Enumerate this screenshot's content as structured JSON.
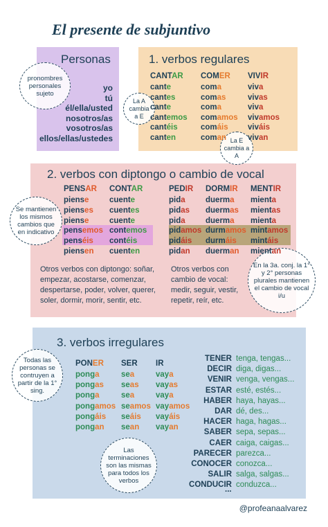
{
  "title": "El presente de subjuntivo",
  "personas": {
    "heading": "Personas",
    "note": "pronombres personales sujeto",
    "pronouns": [
      "yo",
      "tú",
      "él/ella/usted",
      "nosotros/as",
      "vosotros/as",
      "ellos/ellas/ustedes"
    ]
  },
  "regulares": {
    "heading": "1. verbos regulares",
    "note_a": "La A cambia a E",
    "note_e": "La E cambia a A",
    "verbs": [
      {
        "infinitive": [
          "CANT",
          "AR"
        ],
        "forms": [
          [
            "cant",
            "e"
          ],
          [
            "cant",
            "es"
          ],
          [
            "cant",
            "e"
          ],
          [
            "cant",
            "emos"
          ],
          [
            "cant",
            "éis"
          ],
          [
            "cant",
            "en"
          ]
        ]
      },
      {
        "infinitive": [
          "COM",
          "ER"
        ],
        "forms": [
          [
            "com",
            "a"
          ],
          [
            "com",
            "as"
          ],
          [
            "com",
            "a"
          ],
          [
            "com",
            "amos"
          ],
          [
            "com",
            "áis"
          ],
          [
            "com",
            "an"
          ]
        ]
      },
      {
        "infinitive": [
          "VIV",
          "IR"
        ],
        "forms": [
          [
            "viv",
            "a"
          ],
          [
            "viv",
            "as"
          ],
          [
            "viv",
            "a"
          ],
          [
            "viv",
            "amos"
          ],
          [
            "viv",
            "áis"
          ],
          [
            "viv",
            "an"
          ]
        ]
      }
    ]
  },
  "diptongo": {
    "heading": "2. verbos con diptongo o cambio de vocal",
    "note_left": "Se mantienen los mismos cambios que en indicativo",
    "note_right": "En la 3a. conj. la 1° y 2° personas plurales mantienen el cambio de vocal i/u",
    "verbs": [
      {
        "infinitive": [
          "PENS",
          "AR"
        ],
        "forms": [
          [
            "piens",
            "e"
          ],
          [
            "piens",
            "es"
          ],
          [
            "piens",
            "e"
          ],
          [
            "pens",
            "emos"
          ],
          [
            "pens",
            "éis"
          ],
          [
            "piens",
            "en"
          ]
        ]
      },
      {
        "infinitive": [
          "CONT",
          "AR"
        ],
        "forms": [
          [
            "cuent",
            "e"
          ],
          [
            "cuent",
            "es"
          ],
          [
            "cuent",
            "e"
          ],
          [
            "cont",
            "emos"
          ],
          [
            "cont",
            "éis"
          ],
          [
            "cuent",
            "en"
          ]
        ]
      },
      {
        "infinitive": [
          "PED",
          "IR"
        ],
        "forms": [
          [
            "pid",
            "a"
          ],
          [
            "pid",
            "as"
          ],
          [
            "pid",
            "a"
          ],
          [
            "pid",
            "amos"
          ],
          [
            "pid",
            "áis"
          ],
          [
            "pid",
            "an"
          ]
        ]
      },
      {
        "infinitive": [
          "DORM",
          "IR"
        ],
        "forms": [
          [
            "duerm",
            "a"
          ],
          [
            "duerm",
            "as"
          ],
          [
            "duerm",
            "a"
          ],
          [
            "durm",
            "amos"
          ],
          [
            "durm",
            "áis"
          ],
          [
            "duerm",
            "an"
          ]
        ]
      },
      {
        "infinitive": [
          "MENT",
          "IR"
        ],
        "forms": [
          [
            "mient",
            "a"
          ],
          [
            "mient",
            "as"
          ],
          [
            "mient",
            "a"
          ],
          [
            "mint",
            "amos"
          ],
          [
            "mint",
            "áis"
          ],
          [
            "mient",
            "an"
          ]
        ]
      }
    ],
    "others_left": "Otros verbos con diptongo: soñar, empezar, acostarse, comenzar, despertarse, poder, volver, querer, soler, dormir, morir, sentir, etc.",
    "others_right": "Otros verbos con cambio de vocal: medir, seguir, vestir, repetir, reír, etc."
  },
  "irregulares": {
    "heading": "3. verbos irregulares",
    "note_left": "Todas las personas se contruyen a partir de la 1° sing.",
    "note_bottom": "Las terminaciones son las mismas para todos los verbos",
    "verbs": [
      {
        "infinitive": [
          "PON",
          "ER"
        ],
        "forms": [
          [
            "pong",
            "a"
          ],
          [
            "pong",
            "as"
          ],
          [
            "pong",
            "a"
          ],
          [
            "pong",
            "amos"
          ],
          [
            "pong",
            "áis"
          ],
          [
            "pong",
            "an"
          ]
        ]
      },
      {
        "infinitive": [
          "SER",
          ""
        ],
        "forms": [
          [
            "se",
            "a"
          ],
          [
            "se",
            "as"
          ],
          [
            "se",
            "a"
          ],
          [
            "se",
            "amos"
          ],
          [
            "se",
            "áis"
          ],
          [
            "se",
            "an"
          ]
        ]
      },
      {
        "infinitive": [
          "IR",
          ""
        ],
        "forms": [
          [
            "vay",
            "a"
          ],
          [
            "vay",
            "as"
          ],
          [
            "vay",
            "a"
          ],
          [
            "vay",
            "amos"
          ],
          [
            "vay",
            "áis"
          ],
          [
            "vay",
            "an"
          ]
        ]
      }
    ],
    "list": [
      [
        "TENER",
        "tenga, tengas..."
      ],
      [
        "DECIR",
        "diga, digas..."
      ],
      [
        "VENIR",
        "venga, vengas..."
      ],
      [
        "ESTAR",
        "esté, estés..."
      ],
      [
        "HABER",
        "haya, hayas..."
      ],
      [
        "DAR",
        "dé, des..."
      ],
      [
        "HACER",
        "haga, hagas..."
      ],
      [
        "SABER",
        "sepa, sepas..."
      ],
      [
        "CAER",
        "caiga, caigas..."
      ],
      [
        "PARECER",
        "parezca..."
      ],
      [
        "CONOCER",
        "conozca..."
      ],
      [
        "SALIR",
        "salga, salgas..."
      ],
      [
        "CONDUCIR",
        "conduzca..."
      ]
    ],
    "ellipsis": "..."
  },
  "footer": "@profeanaalvarez"
}
